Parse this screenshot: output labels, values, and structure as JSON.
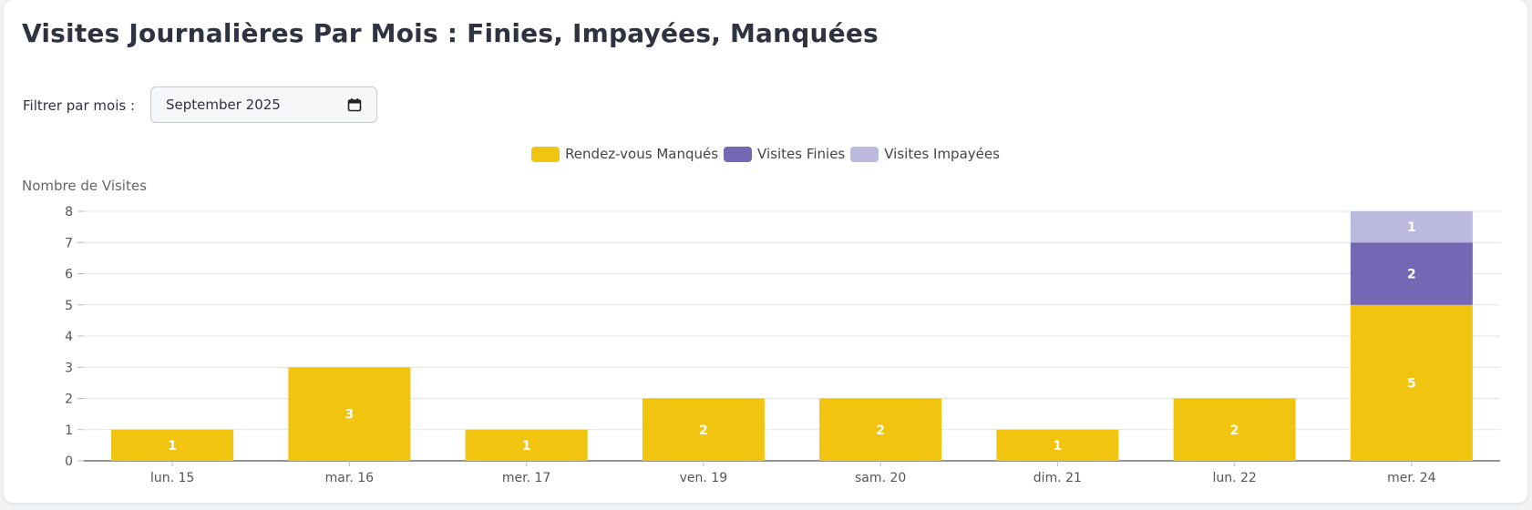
{
  "header": {
    "title": "Visites Journalières Par Mois : Finies, Impayées, Manquées"
  },
  "filter": {
    "label": "Filtrer par mois :",
    "value": "September 2025"
  },
  "chart_data": {
    "type": "bar",
    "stacked": true,
    "title": "",
    "xlabel": "",
    "ylabel": "Nombre de Visites",
    "ylim": [
      0,
      8
    ],
    "yticks": [
      0,
      1,
      2,
      3,
      4,
      5,
      6,
      7,
      8
    ],
    "categories": [
      "lun. 15",
      "mar. 16",
      "mer. 17",
      "ven. 19",
      "sam. 20",
      "dim. 21",
      "lun. 22",
      "mer. 24"
    ],
    "series": [
      {
        "name": "Rendez-vous Manqués",
        "color": "#f1c40f",
        "values": [
          1,
          3,
          1,
          2,
          2,
          1,
          2,
          5
        ]
      },
      {
        "name": "Visites Finies",
        "color": "#7468b5",
        "values": [
          0,
          0,
          0,
          0,
          0,
          0,
          0,
          2
        ]
      },
      {
        "name": "Visites Impayées",
        "color": "#bcb9df",
        "values": [
          0,
          0,
          0,
          0,
          0,
          0,
          0,
          1
        ]
      }
    ],
    "legend_position": "top-center",
    "grid": true
  }
}
